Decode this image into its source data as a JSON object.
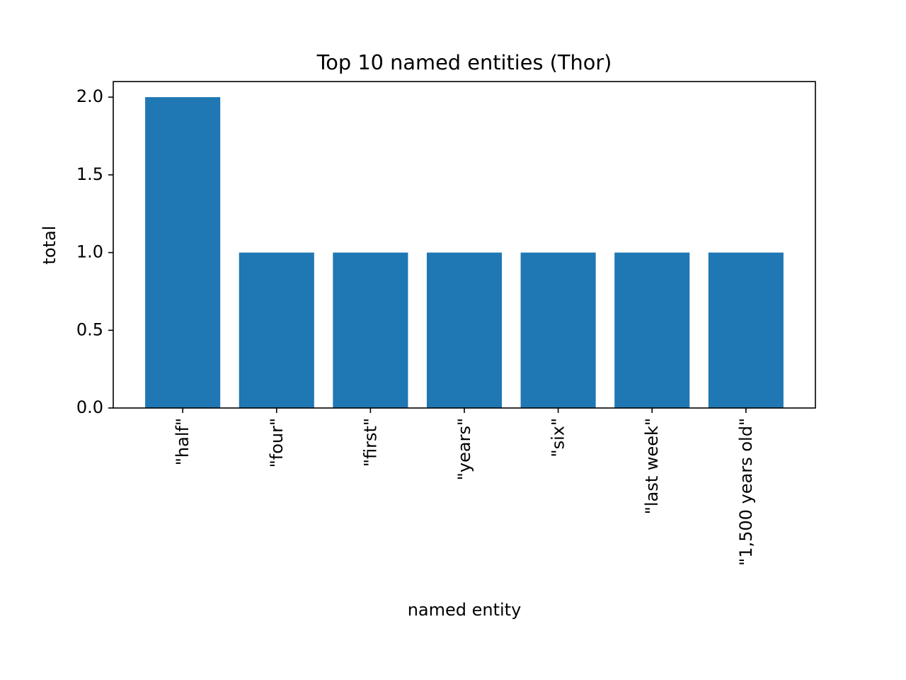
{
  "chart_data": {
    "type": "bar",
    "title": "Top 10 named entities (Thor)",
    "xlabel": "named entity",
    "ylabel": "total",
    "categories": [
      "\"half\"",
      "\"four\"",
      "\"first\"",
      "\"years\"",
      "\"six\"",
      "\"last week\"",
      "\"1,500 years old\""
    ],
    "values": [
      2,
      1,
      1,
      1,
      1,
      1,
      1
    ],
    "ylim": [
      0,
      2.1
    ],
    "yticks": [
      "0.0",
      "0.5",
      "1.0",
      "1.5",
      "2.0"
    ],
    "grid": false,
    "bar_color": "#1f77b4"
  }
}
